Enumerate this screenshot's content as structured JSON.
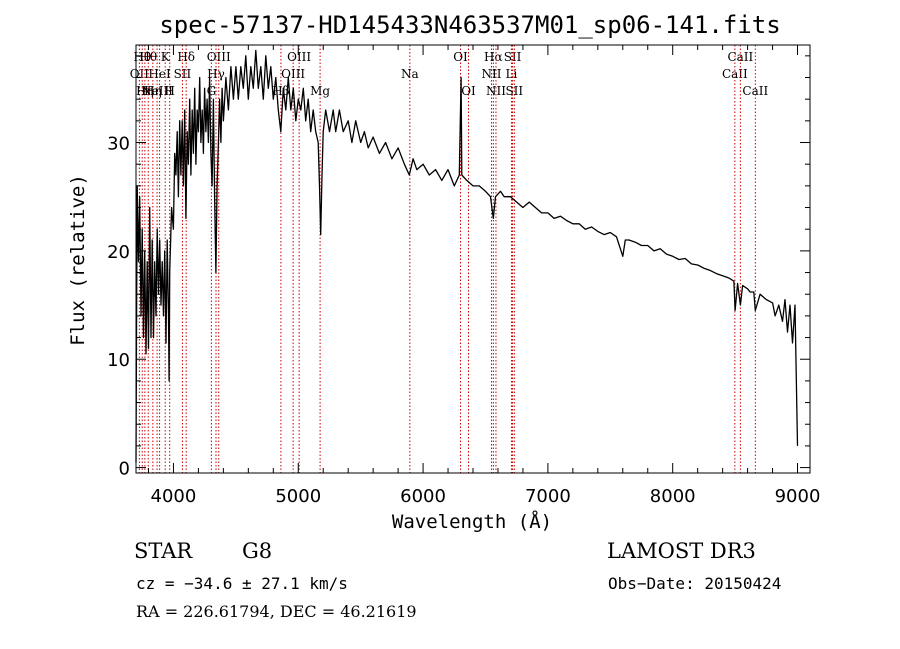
{
  "chart_data": {
    "type": "line",
    "title": "spec-57137-HD145433N463537M01_sp06-141.fits",
    "xlabel": "Wavelength (Å)",
    "ylabel": "Flux (relative)",
    "xlim": [
      3700,
      9100
    ],
    "ylim": [
      -0.5,
      39
    ],
    "xticks": [
      4000,
      5000,
      6000,
      7000,
      8000,
      9000
    ],
    "yticks": [
      0,
      10,
      20,
      30
    ],
    "line_color": "#000000",
    "marker_color": "#cc0000",
    "series": [
      {
        "name": "spectrum",
        "points": [
          [
            3700,
            0.5
          ],
          [
            3705,
            14
          ],
          [
            3710,
            26
          ],
          [
            3720,
            19
          ],
          [
            3730,
            25
          ],
          [
            3740,
            14
          ],
          [
            3750,
            22
          ],
          [
            3760,
            12
          ],
          [
            3770,
            20
          ],
          [
            3780,
            10.5
          ],
          [
            3790,
            19
          ],
          [
            3800,
            11
          ],
          [
            3810,
            24
          ],
          [
            3820,
            12
          ],
          [
            3830,
            21
          ],
          [
            3840,
            12
          ],
          [
            3850,
            19
          ],
          [
            3860,
            14
          ],
          [
            3870,
            22
          ],
          [
            3880,
            16
          ],
          [
            3890,
            21
          ],
          [
            3900,
            15
          ],
          [
            3910,
            19
          ],
          [
            3920,
            14
          ],
          [
            3930,
            20
          ],
          [
            3940,
            11.5
          ],
          [
            3950,
            21
          ],
          [
            3960,
            14
          ],
          [
            3965,
            8
          ],
          [
            3970,
            18
          ],
          [
            3985,
            24
          ],
          [
            4000,
            22
          ],
          [
            4010,
            29
          ],
          [
            4020,
            27
          ],
          [
            4030,
            31
          ],
          [
            4040,
            25
          ],
          [
            4050,
            32
          ],
          [
            4060,
            27
          ],
          [
            4070,
            32
          ],
          [
            4080,
            26
          ],
          [
            4090,
            33
          ],
          [
            4100,
            23
          ],
          [
            4110,
            31
          ],
          [
            4120,
            28
          ],
          [
            4130,
            34
          ],
          [
            4140,
            27
          ],
          [
            4150,
            33
          ],
          [
            4160,
            29
          ],
          [
            4170,
            35
          ],
          [
            4180,
            28
          ],
          [
            4190,
            33
          ],
          [
            4200,
            31
          ],
          [
            4210,
            36
          ],
          [
            4220,
            30
          ],
          [
            4230,
            33
          ],
          [
            4240,
            29
          ],
          [
            4250,
            35
          ],
          [
            4260,
            31
          ],
          [
            4270,
            34
          ],
          [
            4280,
            30
          ],
          [
            4290,
            36
          ],
          [
            4300,
            29
          ],
          [
            4310,
            26
          ],
          [
            4320,
            34
          ],
          [
            4330,
            25
          ],
          [
            4340,
            18
          ],
          [
            4350,
            26
          ],
          [
            4360,
            30
          ],
          [
            4370,
            34
          ],
          [
            4380,
            30
          ],
          [
            4390,
            35
          ],
          [
            4400,
            32
          ],
          [
            4420,
            36
          ],
          [
            4440,
            33
          ],
          [
            4460,
            37
          ],
          [
            4480,
            34
          ],
          [
            4500,
            37
          ],
          [
            4520,
            34
          ],
          [
            4540,
            37
          ],
          [
            4560,
            35
          ],
          [
            4580,
            38
          ],
          [
            4600,
            34
          ],
          [
            4620,
            37
          ],
          [
            4640,
            35
          ],
          [
            4660,
            38.5
          ],
          [
            4680,
            35
          ],
          [
            4700,
            37
          ],
          [
            4720,
            34
          ],
          [
            4740,
            38
          ],
          [
            4760,
            35
          ],
          [
            4780,
            37
          ],
          [
            4800,
            34
          ],
          [
            4820,
            36
          ],
          [
            4840,
            33
          ],
          [
            4860,
            31
          ],
          [
            4880,
            35
          ],
          [
            4900,
            33
          ],
          [
            4920,
            36
          ],
          [
            4940,
            33
          ],
          [
            4960,
            35
          ],
          [
            4980,
            32
          ],
          [
            5000,
            34
          ],
          [
            5020,
            33
          ],
          [
            5040,
            35
          ],
          [
            5060,
            32
          ],
          [
            5080,
            34
          ],
          [
            5100,
            31
          ],
          [
            5120,
            33
          ],
          [
            5140,
            31
          ],
          [
            5160,
            30
          ],
          [
            5170,
            26
          ],
          [
            5180,
            21.5
          ],
          [
            5190,
            27
          ],
          [
            5200,
            31
          ],
          [
            5220,
            33
          ],
          [
            5250,
            31
          ],
          [
            5280,
            33
          ],
          [
            5300,
            31
          ],
          [
            5330,
            33
          ],
          [
            5360,
            31
          ],
          [
            5400,
            32
          ],
          [
            5430,
            30
          ],
          [
            5460,
            32
          ],
          [
            5500,
            30
          ],
          [
            5530,
            31
          ],
          [
            5560,
            29.5
          ],
          [
            5600,
            30.5
          ],
          [
            5650,
            29
          ],
          [
            5700,
            30
          ],
          [
            5750,
            28.5
          ],
          [
            5800,
            29.5
          ],
          [
            5850,
            28
          ],
          [
            5890,
            27
          ],
          [
            5920,
            28.5
          ],
          [
            5950,
            27.5
          ],
          [
            6000,
            28
          ],
          [
            6050,
            27
          ],
          [
            6100,
            27.5
          ],
          [
            6150,
            26.5
          ],
          [
            6200,
            27.5
          ],
          [
            6250,
            26
          ],
          [
            6290,
            27
          ],
          [
            6300,
            33
          ],
          [
            6305,
            36
          ],
          [
            6310,
            27
          ],
          [
            6350,
            26.5
          ],
          [
            6400,
            26
          ],
          [
            6450,
            26
          ],
          [
            6500,
            25.5
          ],
          [
            6540,
            25
          ],
          [
            6563,
            23
          ],
          [
            6580,
            25
          ],
          [
            6620,
            25.5
          ],
          [
            6650,
            25
          ],
          [
            6700,
            25
          ],
          [
            6750,
            24.5
          ],
          [
            6800,
            24
          ],
          [
            6850,
            24.5
          ],
          [
            6900,
            24
          ],
          [
            6950,
            23.5
          ],
          [
            7000,
            23.5
          ],
          [
            7050,
            23
          ],
          [
            7100,
            23.2
          ],
          [
            7150,
            22.8
          ],
          [
            7200,
            22.5
          ],
          [
            7250,
            22.5
          ],
          [
            7300,
            22
          ],
          [
            7350,
            22.2
          ],
          [
            7400,
            21.8
          ],
          [
            7450,
            21.5
          ],
          [
            7500,
            21.7
          ],
          [
            7550,
            21.3
          ],
          [
            7600,
            19.5
          ],
          [
            7620,
            21
          ],
          [
            7650,
            21
          ],
          [
            7700,
            20.8
          ],
          [
            7750,
            20.5
          ],
          [
            7800,
            20.5
          ],
          [
            7850,
            20
          ],
          [
            7900,
            20.2
          ],
          [
            7950,
            19.7
          ],
          [
            8000,
            19.5
          ],
          [
            8050,
            19.2
          ],
          [
            8100,
            19.3
          ],
          [
            8150,
            18.8
          ],
          [
            8200,
            18.7
          ],
          [
            8250,
            18.4
          ],
          [
            8300,
            18.2
          ],
          [
            8350,
            17.9
          ],
          [
            8400,
            17.7
          ],
          [
            8450,
            17.5
          ],
          [
            8490,
            17.2
          ],
          [
            8500,
            14.5
          ],
          [
            8520,
            17
          ],
          [
            8542,
            15
          ],
          [
            8560,
            16.8
          ],
          [
            8600,
            16.5
          ],
          [
            8620,
            16.2
          ],
          [
            8650,
            16.2
          ],
          [
            8662,
            14.5
          ],
          [
            8700,
            16
          ],
          [
            8750,
            15.5
          ],
          [
            8800,
            15.2
          ],
          [
            8820,
            14
          ],
          [
            8850,
            15
          ],
          [
            8880,
            13.5
          ],
          [
            8900,
            15.5
          ],
          [
            8920,
            12.5
          ],
          [
            8940,
            15
          ],
          [
            8960,
            11.5
          ],
          [
            8980,
            15
          ],
          [
            9000,
            2
          ]
        ]
      }
    ],
    "line_markers": [
      {
        "wavelength": 3727,
        "label": "OII",
        "row": 2
      },
      {
        "wavelength": 3750,
        "label": "Hθ",
        "row": 1
      },
      {
        "wavelength": 3771,
        "label": "Hη",
        "row": 3
      },
      {
        "wavelength": 3798,
        "label": "Hθ",
        "row": 1
      },
      {
        "wavelength": 3835,
        "label": "Hη",
        "row": 3
      },
      {
        "wavelength": 3869,
        "label": "NeIII",
        "row": 3
      },
      {
        "wavelength": 3889,
        "label": "HeI",
        "row": 2
      },
      {
        "wavelength": 3934,
        "label": "K",
        "row": 1
      },
      {
        "wavelength": 3970,
        "label": "H",
        "row": 3
      },
      {
        "wavelength": 4072,
        "label": "SII",
        "row": 2
      },
      {
        "wavelength": 4102,
        "label": "Hδ",
        "row": 1
      },
      {
        "wavelength": 4304,
        "label": "G",
        "row": 3
      },
      {
        "wavelength": 4341,
        "label": "Hγ",
        "row": 2
      },
      {
        "wavelength": 4363,
        "label": "OIII",
        "row": 1
      },
      {
        "wavelength": 4861,
        "label": "Hβ",
        "row": 3
      },
      {
        "wavelength": 4959,
        "label": "OIII",
        "row": 2
      },
      {
        "wavelength": 5007,
        "label": "OIII",
        "row": 1
      },
      {
        "wavelength": 5175,
        "label": "Mg",
        "row": 3
      },
      {
        "wavelength": 5894,
        "label": "Na",
        "row": 2
      },
      {
        "wavelength": 6300,
        "label": "OI",
        "row": 1
      },
      {
        "wavelength": 6364,
        "label": "OI",
        "row": 3
      },
      {
        "wavelength": 6548,
        "label": "NII",
        "row": 2
      },
      {
        "wavelength": 6563,
        "label": "Hα",
        "row": 1
      },
      {
        "wavelength": 6584,
        "label": "NII",
        "row": 3
      },
      {
        "wavelength": 6708,
        "label": "Li",
        "row": 2
      },
      {
        "wavelength": 6717,
        "label": "SII",
        "row": 1
      },
      {
        "wavelength": 6731,
        "label": "SII",
        "row": 3
      },
      {
        "wavelength": 8498,
        "label": "CaII",
        "row": 2
      },
      {
        "wavelength": 8542,
        "label": "CaII",
        "row": 1
      },
      {
        "wavelength": 8662,
        "label": "CaII",
        "row": 3
      }
    ]
  },
  "info": {
    "object_class": "STAR",
    "subclass": "G8",
    "survey": "LAMOST DR3",
    "redshift": "cz = −34.6 ± 27.1 km/s",
    "obs_date": "Obs−Date: 20150424",
    "coords": "RA = 226.61794, DEC =  46.21619"
  }
}
